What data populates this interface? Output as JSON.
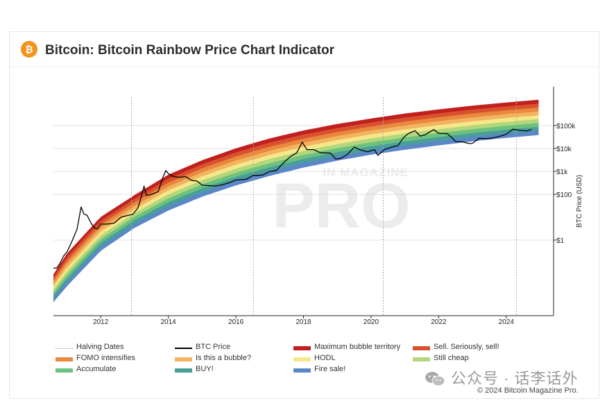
{
  "header": {
    "title": "Bitcoin: Bitcoin Rainbow Price Chart Indicator"
  },
  "watermark": {
    "top_text": "IN MAGAZINE",
    "main_text": "PRO"
  },
  "chart_data": {
    "type": "line",
    "title": "Bitcoin: Bitcoin Rainbow Price Chart Indicator",
    "xlabel": "",
    "ylabel": "BTC Price (USD)",
    "y_scale": "log",
    "xlim": [
      2010.6,
      2025.4
    ],
    "ylim": [
      0.0005,
      5000000
    ],
    "x_ticks": [
      "2012",
      "2014",
      "2016",
      "2018",
      "2020",
      "2022",
      "2024"
    ],
    "y_ticks": [
      {
        "value": 1,
        "label": "$1"
      },
      {
        "value": 100,
        "label": "$100"
      },
      {
        "value": 1000,
        "label": "$1k"
      },
      {
        "value": 10000,
        "label": "$10k"
      },
      {
        "value": 100000,
        "label": "$100k"
      }
    ],
    "grid": "horizontal",
    "legend_position": "bottom",
    "halving_dates": [
      2012.91,
      2016.52,
      2020.36,
      2024.3
    ],
    "rainbow_bands": [
      {
        "name": "Maximum bubble territory",
        "color": "#c0201e"
      },
      {
        "name": "Sell. Seriously, sell!",
        "color": "#d9512f"
      },
      {
        "name": "FOMO intensifies",
        "color": "#e8893e"
      },
      {
        "name": "Is this a bubble?",
        "color": "#f3b461"
      },
      {
        "name": "HODL",
        "color": "#f5e88a"
      },
      {
        "name": "Still cheap",
        "color": "#b4d67c"
      },
      {
        "name": "Accumulate",
        "color": "#6cc27d"
      },
      {
        "name": "BUY!",
        "color": "#4a9e9a"
      },
      {
        "name": "Fire sale!",
        "color": "#5b87c7"
      }
    ],
    "rainbow_lower_bound": [
      [
        2010.6,
        0.002
      ],
      [
        2011.0,
        0.01
      ],
      [
        2012.0,
        0.35
      ],
      [
        2013.0,
        3.5
      ],
      [
        2014.0,
        20
      ],
      [
        2015.0,
        80
      ],
      [
        2016.0,
        250
      ],
      [
        2017.0,
        650
      ],
      [
        2018.0,
        1500
      ],
      [
        2019.0,
        3000
      ],
      [
        2020.0,
        5500
      ],
      [
        2021.0,
        9000
      ],
      [
        2022.0,
        14000
      ],
      [
        2023.0,
        21000
      ],
      [
        2024.0,
        30000
      ],
      [
        2025.4,
        45000
      ]
    ],
    "rainbow_upper_bound": [
      [
        2010.6,
        0.03
      ],
      [
        2011.0,
        0.25
      ],
      [
        2012.0,
        10
      ],
      [
        2013.0,
        90
      ],
      [
        2014.0,
        700
      ],
      [
        2015.0,
        3000
      ],
      [
        2016.0,
        10000
      ],
      [
        2017.0,
        27000
      ],
      [
        2018.0,
        60000
      ],
      [
        2019.0,
        115000
      ],
      [
        2020.0,
        200000
      ],
      [
        2021.0,
        330000
      ],
      [
        2022.0,
        500000
      ],
      [
        2023.0,
        730000
      ],
      [
        2024.0,
        1000000
      ],
      [
        2025.4,
        1500000
      ]
    ],
    "series": [
      {
        "name": "BTC Price",
        "color": "#000000",
        "points": [
          [
            2010.6,
            0.06
          ],
          [
            2010.7,
            0.06
          ],
          [
            2010.8,
            0.1
          ],
          [
            2010.9,
            0.2
          ],
          [
            2011.0,
            0.3
          ],
          [
            2011.15,
            0.9
          ],
          [
            2011.3,
            3
          ],
          [
            2011.42,
            28
          ],
          [
            2011.5,
            14
          ],
          [
            2011.6,
            12
          ],
          [
            2011.7,
            6
          ],
          [
            2011.8,
            3.5
          ],
          [
            2011.9,
            3
          ],
          [
            2012.0,
            5
          ],
          [
            2012.2,
            5
          ],
          [
            2012.4,
            5.5
          ],
          [
            2012.6,
            10
          ],
          [
            2012.8,
            12
          ],
          [
            2012.95,
            13.5
          ],
          [
            2013.1,
            25
          ],
          [
            2013.2,
            80
          ],
          [
            2013.28,
            230
          ],
          [
            2013.35,
            90
          ],
          [
            2013.5,
            100
          ],
          [
            2013.7,
            130
          ],
          [
            2013.85,
            600
          ],
          [
            2013.93,
            1100
          ],
          [
            2014.0,
            800
          ],
          [
            2014.15,
            600
          ],
          [
            2014.35,
            550
          ],
          [
            2014.5,
            600
          ],
          [
            2014.7,
            400
          ],
          [
            2014.85,
            380
          ],
          [
            2015.0,
            250
          ],
          [
            2015.2,
            240
          ],
          [
            2015.4,
            230
          ],
          [
            2015.6,
            260
          ],
          [
            2015.8,
            320
          ],
          [
            2016.0,
            420
          ],
          [
            2016.3,
            450
          ],
          [
            2016.5,
            650
          ],
          [
            2016.8,
            700
          ],
          [
            2017.0,
            1000
          ],
          [
            2017.2,
            1100
          ],
          [
            2017.4,
            2300
          ],
          [
            2017.6,
            4300
          ],
          [
            2017.8,
            6500
          ],
          [
            2017.96,
            19000
          ],
          [
            2018.1,
            9000
          ],
          [
            2018.3,
            9000
          ],
          [
            2018.5,
            6500
          ],
          [
            2018.8,
            6300
          ],
          [
            2018.95,
            3500
          ],
          [
            2019.1,
            3700
          ],
          [
            2019.3,
            5500
          ],
          [
            2019.5,
            11500
          ],
          [
            2019.7,
            8500
          ],
          [
            2019.9,
            7200
          ],
          [
            2020.1,
            9000
          ],
          [
            2020.2,
            5000
          ],
          [
            2020.4,
            9200
          ],
          [
            2020.6,
            11500
          ],
          [
            2020.8,
            13500
          ],
          [
            2020.95,
            29000
          ],
          [
            2021.1,
            45000
          ],
          [
            2021.3,
            60000
          ],
          [
            2021.45,
            35000
          ],
          [
            2021.6,
            40000
          ],
          [
            2021.85,
            67000
          ],
          [
            2022.0,
            46000
          ],
          [
            2022.25,
            45000
          ],
          [
            2022.4,
            29000
          ],
          [
            2022.5,
            20000
          ],
          [
            2022.7,
            19500
          ],
          [
            2022.9,
            16500
          ],
          [
            2023.0,
            16800
          ],
          [
            2023.2,
            28000
          ],
          [
            2023.4,
            27000
          ],
          [
            2023.6,
            29000
          ],
          [
            2023.8,
            34000
          ],
          [
            2024.0,
            42000
          ],
          [
            2024.2,
            70000
          ],
          [
            2024.4,
            62000
          ],
          [
            2024.6,
            58000
          ],
          [
            2024.75,
            68000
          ]
        ]
      }
    ]
  },
  "legend": {
    "items": [
      {
        "label": "Halving Dates",
        "kind": "dots",
        "color": "#999999"
      },
      {
        "label": "BTC Price",
        "kind": "line",
        "color": "#000000"
      },
      {
        "label": "Maximum bubble territory",
        "kind": "band",
        "color": "#c0201e"
      },
      {
        "label": "Sell. Seriously, sell!",
        "kind": "band",
        "color": "#d9512f"
      },
      {
        "label": "FOMO intensifies",
        "kind": "band",
        "color": "#e8893e"
      },
      {
        "label": "Is this a bubble?",
        "kind": "band",
        "color": "#f3b461"
      },
      {
        "label": "HODL",
        "kind": "band",
        "color": "#f5e88a"
      },
      {
        "label": "Still cheap",
        "kind": "band",
        "color": "#b4d67c"
      },
      {
        "label": "Accumulate",
        "kind": "band",
        "color": "#6cc27d"
      },
      {
        "label": "BUY!",
        "kind": "band",
        "color": "#4a9e9a"
      },
      {
        "label": "Fire sale!",
        "kind": "band",
        "color": "#5b87c7"
      }
    ]
  },
  "footer": {
    "wechat_text": "公众号 · 话李话外",
    "copyright": "© 2024 Bitcoin Magazine Pro."
  }
}
